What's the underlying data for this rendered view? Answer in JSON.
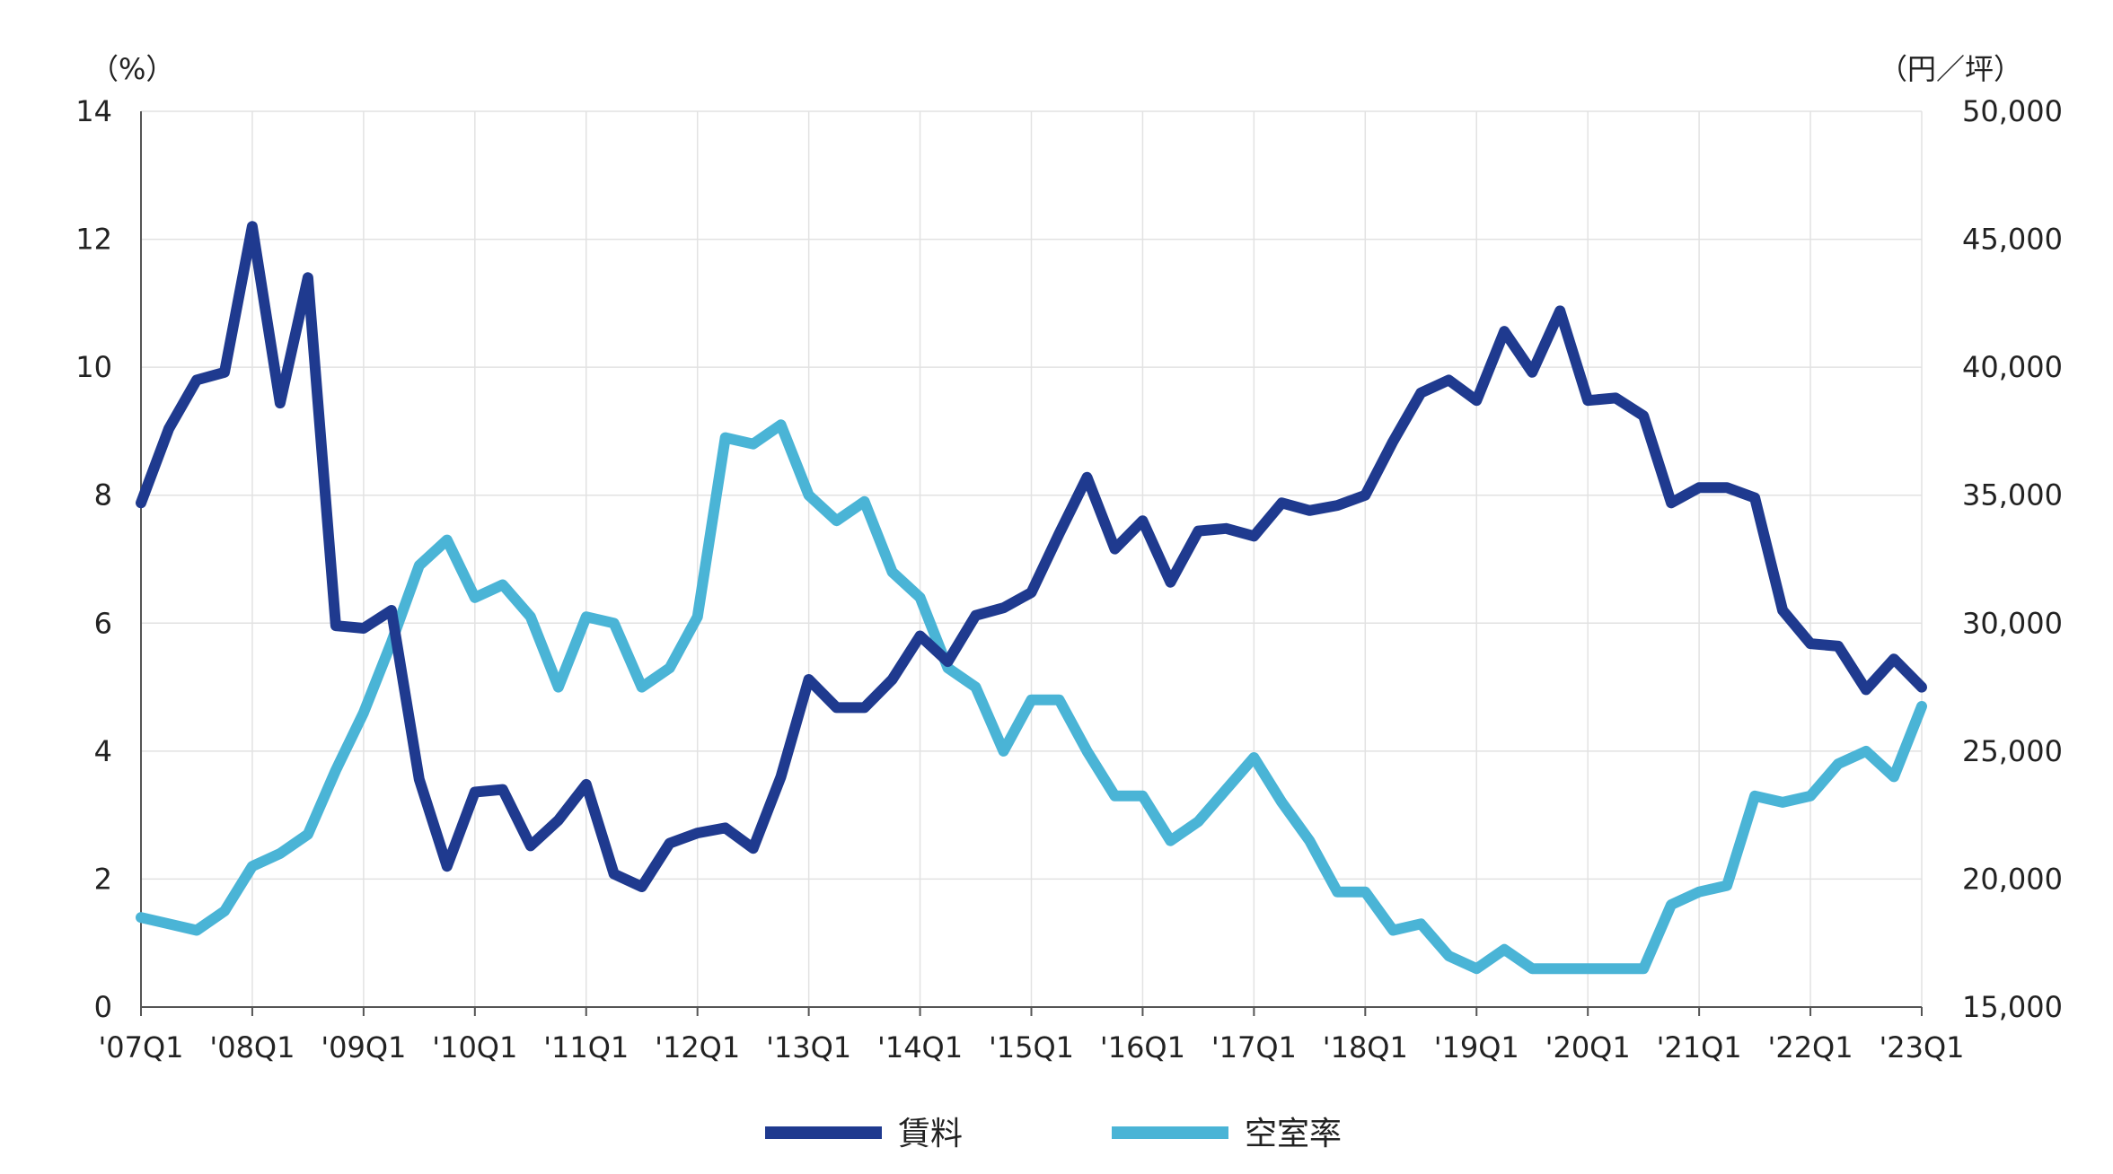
{
  "chart_data": {
    "type": "line",
    "title": "",
    "xlabel": "",
    "y_left_label": "（%）",
    "y_right_label": "（円／坪）",
    "y_left_range": [
      0,
      14
    ],
    "y_left_ticks": [
      "0",
      "2",
      "4",
      "6",
      "8",
      "10",
      "12",
      "14"
    ],
    "y_right_range": [
      15000,
      50000
    ],
    "y_right_ticks": [
      "15,000",
      "20,000",
      "25,000",
      "30,000",
      "35,000",
      "40,000",
      "45,000",
      "50,000"
    ],
    "x_tick_labels": [
      "'07Q1",
      "'08Q1",
      "'09Q1",
      "'10Q1",
      "'11Q1",
      "'12Q1",
      "'13Q1",
      "'14Q1",
      "'15Q1",
      "'16Q1",
      "'17Q1",
      "'18Q1",
      "'19Q1",
      "'20Q1",
      "'21Q1",
      "'22Q1",
      "'23Q1"
    ],
    "grid": true,
    "legend_position": "bottom",
    "series": [
      {
        "name": "賃料",
        "axis": "right",
        "color": "#1f3a8f",
        "values": [
          34700,
          37600,
          39500,
          39800,
          45500,
          38600,
          43500,
          29900,
          29800,
          30500,
          23900,
          20500,
          23400,
          23500,
          21300,
          22300,
          23700,
          20200,
          19700,
          21400,
          21800,
          22000,
          21200,
          24000,
          27800,
          26700,
          26700,
          27800,
          29500,
          28500,
          30300,
          30600,
          31200,
          33500,
          35700,
          32900,
          34000,
          31600,
          33600,
          33700,
          33400,
          34700,
          34400,
          34600,
          35000,
          37100,
          39000,
          39500,
          38700,
          41400,
          39800,
          42200,
          38700,
          38800,
          38100,
          34700,
          35300,
          35300,
          34900,
          30500,
          29200,
          29100,
          27400,
          28600,
          27500
        ]
      },
      {
        "name": "空室率",
        "axis": "left",
        "color": "#4ab4d6",
        "values": [
          1.4,
          1.3,
          1.2,
          1.5,
          2.2,
          2.4,
          2.7,
          3.7,
          4.6,
          5.7,
          6.9,
          7.3,
          6.4,
          6.6,
          6.1,
          5.0,
          6.1,
          6.0,
          5.0,
          5.3,
          6.1,
          8.9,
          8.8,
          9.1,
          8.0,
          7.6,
          7.9,
          6.8,
          6.4,
          5.3,
          5.0,
          4.0,
          4.8,
          4.8,
          4.0,
          3.3,
          3.3,
          2.6,
          2.9,
          3.4,
          3.9,
          3.2,
          2.6,
          1.8,
          1.8,
          1.2,
          1.3,
          0.8,
          0.6,
          0.9,
          0.6,
          0.6,
          0.6,
          0.6,
          0.6,
          1.6,
          1.8,
          1.9,
          3.3,
          3.2,
          3.3,
          3.8,
          4.0,
          3.6,
          4.7
        ]
      }
    ]
  }
}
